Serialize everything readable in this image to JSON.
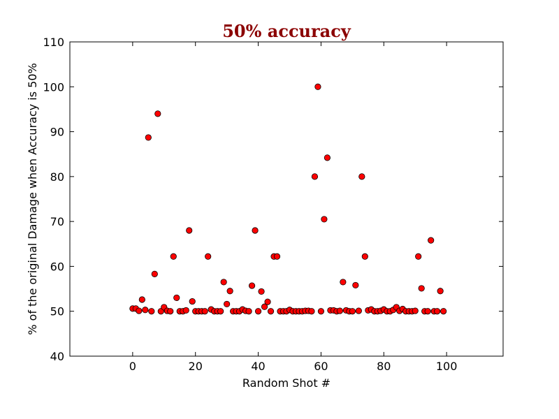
{
  "chart_data": {
    "type": "scatter",
    "title": "50% accuracy",
    "xlabel": "Random Shot #",
    "ylabel": "% of the original Damage when Accuracy is 50%",
    "xlim": [
      -20,
      118
    ],
    "ylim": [
      40,
      110
    ],
    "xticks": [
      0,
      20,
      40,
      60,
      80,
      100
    ],
    "yticks": [
      40,
      50,
      60,
      70,
      80,
      90,
      100,
      110
    ],
    "grid": false,
    "colors": {
      "title": "#8b0000",
      "marker": "#ff0000",
      "marker_edge": "#000000",
      "axes": "#000000"
    },
    "series": [
      {
        "x": [
          0,
          1,
          2,
          3,
          4,
          5,
          6,
          7,
          8,
          9,
          10,
          11,
          12,
          13,
          14,
          15,
          16,
          17,
          18,
          19,
          20,
          21,
          22,
          23,
          24,
          25,
          26,
          27,
          28,
          29,
          30,
          31,
          32,
          33,
          34,
          35,
          36,
          37,
          38,
          39,
          40,
          41,
          42,
          43,
          44,
          45,
          46,
          47,
          48,
          49,
          50,
          51,
          52,
          53,
          54,
          55,
          56,
          57,
          58,
          59,
          60,
          61,
          62,
          63,
          64,
          65,
          66,
          67,
          68,
          69,
          70,
          71,
          72,
          73,
          74,
          75,
          76,
          77,
          78,
          79,
          80,
          81,
          82,
          83,
          84,
          85,
          86,
          87,
          88,
          89,
          90,
          91,
          92,
          93,
          94,
          95,
          96,
          97,
          98,
          99
        ],
        "y": [
          50.6,
          50.6,
          50.1,
          52.6,
          50.3,
          88.7,
          50.0,
          58.3,
          94.0,
          50.0,
          50.9,
          50.1,
          50.0,
          62.2,
          53.0,
          50.0,
          50.0,
          50.2,
          68.0,
          52.2,
          50.0,
          50.0,
          50.0,
          50.0,
          62.2,
          50.4,
          50.0,
          50.0,
          50.0,
          56.5,
          51.6,
          54.5,
          50.0,
          50.0,
          50.0,
          50.4,
          50.1,
          50.0,
          55.7,
          68.0,
          50.0,
          54.4,
          51.0,
          52.1,
          50.0,
          62.2,
          62.2,
          50.0,
          50.0,
          50.0,
          50.3,
          50.0,
          50.0,
          50.0,
          50.0,
          50.1,
          50.1,
          50.0,
          80.0,
          100.0,
          50.0,
          70.5,
          84.2,
          50.2,
          50.2,
          50.0,
          50.1,
          56.5,
          50.2,
          50.0,
          50.0,
          55.8,
          50.1,
          80.0,
          62.2,
          50.2,
          50.4,
          50.0,
          50.0,
          50.1,
          50.4,
          50.0,
          50.0,
          50.3,
          50.9,
          50.1,
          50.5,
          50.0,
          50.0,
          50.0,
          50.1,
          62.2,
          55.1,
          50.0,
          50.0,
          65.8,
          50.0,
          50.0,
          54.5,
          50.0
        ]
      }
    ]
  }
}
